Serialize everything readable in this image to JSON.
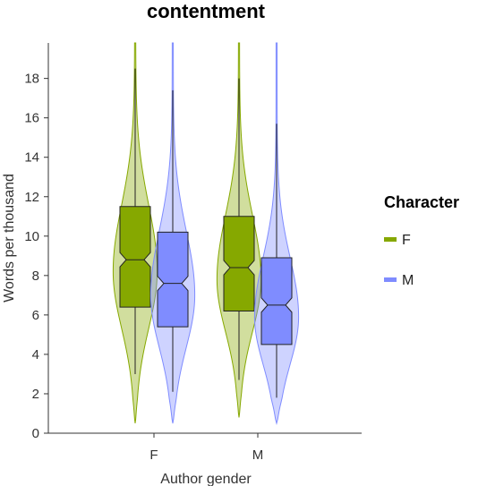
{
  "chart_data": {
    "type": "violin",
    "title": "contentment",
    "xlabel": "Author gender",
    "ylabel": "Words per thousand",
    "categories": [
      "F",
      "M"
    ],
    "ylim": [
      0,
      19.8
    ],
    "yticks": [
      0,
      2,
      4,
      6,
      8,
      10,
      12,
      14,
      16,
      18
    ],
    "legend": {
      "title": "Character",
      "position": "right"
    },
    "grid": false,
    "series": [
      {
        "name": "F",
        "color": "#86a800",
        "groups": [
          {
            "category": "F",
            "q1": 6.4,
            "median": 8.8,
            "q3": 11.5,
            "whisker_low": 3.0,
            "whisker_high": 18.5,
            "min": 0.5,
            "max": 19.8
          },
          {
            "category": "M",
            "q1": 6.2,
            "median": 8.4,
            "q3": 11.0,
            "whisker_low": 2.7,
            "whisker_high": 18.0,
            "min": 0.8,
            "max": 19.8
          }
        ]
      },
      {
        "name": "M",
        "color": "#7f8cff",
        "groups": [
          {
            "category": "F",
            "q1": 5.4,
            "median": 7.6,
            "q3": 10.2,
            "whisker_low": 2.1,
            "whisker_high": 17.4,
            "min": 0.5,
            "max": 19.8
          },
          {
            "category": "M",
            "q1": 4.5,
            "median": 6.5,
            "q3": 8.9,
            "whisker_low": 1.8,
            "whisker_high": 15.7,
            "min": 0.5,
            "max": 19.8
          }
        ]
      }
    ]
  }
}
